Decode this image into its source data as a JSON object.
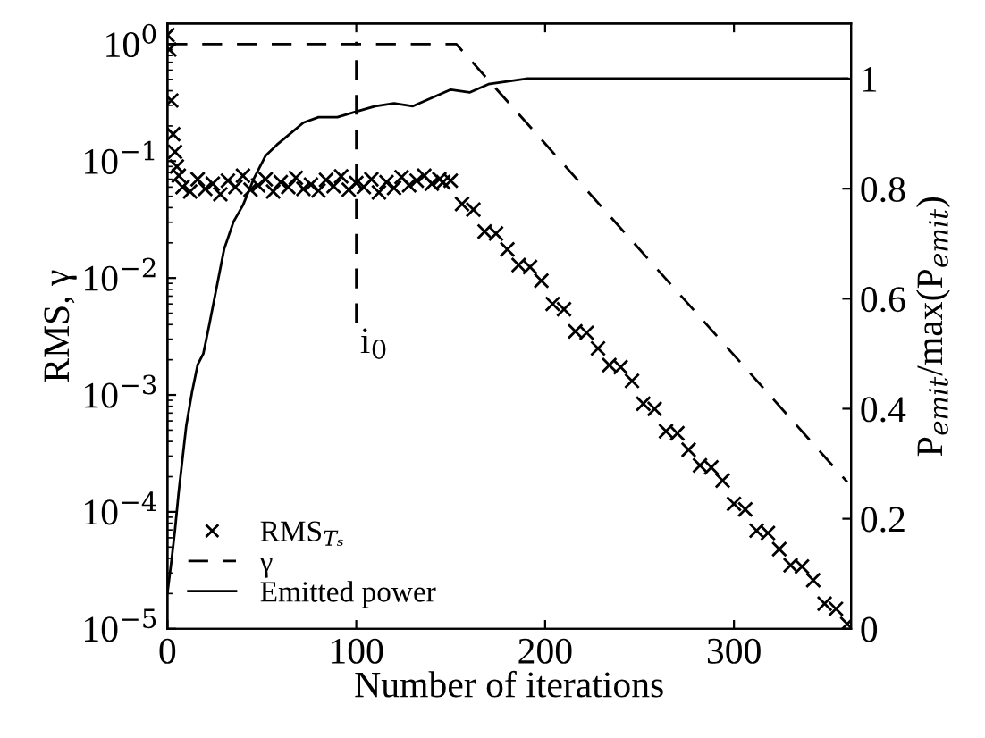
{
  "chart_data": {
    "type": "line",
    "xlabel": "Number of iterations",
    "ylabel": "RMS, γ",
    "y2label": "P$_{emit}$/max(P$_{emit}$)",
    "xlim": [
      0,
      362
    ],
    "xticks": [
      0,
      100,
      200,
      300
    ],
    "ylim": [
      1e-05,
      1.5
    ],
    "yticks": [
      {
        "value": 1e-05,
        "label": "10$^{−5}$"
      },
      {
        "value": 0.0001,
        "label": "10$^{−4}$"
      },
      {
        "value": 0.001,
        "label": "10$^{−3}$"
      },
      {
        "value": 0.01,
        "label": "10$^{−2}$"
      },
      {
        "value": 0.1,
        "label": "10$^{−1}$"
      },
      {
        "value": 1,
        "label": "10$^{0}$"
      }
    ],
    "y2lim": [
      0,
      1.1
    ],
    "y2ticks": [
      0,
      0.2,
      0.4,
      0.6,
      0.8,
      1
    ],
    "log": true,
    "grid": false,
    "legend": "bottom left",
    "ref_lines": [
      {
        "axis": "x",
        "value": 100,
        "label": "i$_{0}$",
        "line_style": "dashed",
        "color": "#000000"
      }
    ],
    "series": [
      {
        "name": "RMS$_{Tₛ}$",
        "type": "scatter",
        "marker": "cross",
        "color": "#000000",
        "x": [
          0,
          1,
          2,
          3,
          4,
          5,
          6,
          8,
          12,
          16,
          20,
          24,
          28,
          32,
          36,
          40,
          44,
          48,
          52,
          56,
          60,
          64,
          68,
          72,
          76,
          80,
          84,
          88,
          92,
          96,
          100,
          104,
          108,
          112,
          116,
          120,
          124,
          128,
          132,
          136,
          140,
          144,
          146,
          150,
          156,
          162,
          168,
          174,
          180,
          186,
          192,
          198,
          204,
          210,
          216,
          222,
          228,
          234,
          240,
          246,
          252,
          258,
          264,
          270,
          276,
          282,
          288,
          294,
          300,
          306,
          312,
          318,
          324,
          330,
          336,
          342,
          348,
          354,
          360
        ],
        "values": [
          1.2,
          0.9,
          0.33,
          0.17,
          0.12,
          0.09,
          0.075,
          0.06,
          0.055,
          0.07,
          0.058,
          0.064,
          0.052,
          0.068,
          0.06,
          0.075,
          0.057,
          0.062,
          0.07,
          0.055,
          0.066,
          0.06,
          0.072,
          0.058,
          0.063,
          0.056,
          0.069,
          0.061,
          0.074,
          0.057,
          0.065,
          0.06,
          0.07,
          0.054,
          0.066,
          0.059,
          0.073,
          0.062,
          0.068,
          0.075,
          0.064,
          0.07,
          0.066,
          0.068,
          0.043,
          0.0385,
          0.025,
          0.024,
          0.0176,
          0.0129,
          0.0124,
          0.0095,
          0.006,
          0.0054,
          0.0035,
          0.0034,
          0.0025,
          0.0018,
          0.00173,
          0.00132,
          0.00084,
          0.00076,
          0.00049,
          0.00047,
          0.00034,
          0.00025,
          0.00024,
          0.000185,
          0.000117,
          0.000105,
          6.9e-05,
          6.6e-05,
          4.8e-05,
          3.5e-05,
          3.4e-05,
          2.6e-05,
          1.64e-05,
          1.48e-05,
          1.1e-05
        ]
      },
      {
        "name": "γ",
        "line_style": "dashed",
        "color": "#000000",
        "x": [
          0,
          153,
          360
        ],
        "values": [
          1,
          1,
          0.00018
        ]
      },
      {
        "name": "Emitted power",
        "line_style": "solid",
        "axis": "y2",
        "color": "#000000",
        "x": [
          0,
          2,
          4,
          6,
          8,
          10,
          13,
          16,
          19,
          22,
          26,
          30,
          35,
          40,
          46,
          52,
          58,
          65,
          72,
          80,
          90,
          100,
          110,
          120,
          130,
          140,
          150,
          160,
          170,
          180,
          190,
          200,
          250,
          300,
          360
        ],
        "values": [
          0.065,
          0.12,
          0.18,
          0.25,
          0.31,
          0.37,
          0.43,
          0.48,
          0.5,
          0.55,
          0.62,
          0.69,
          0.74,
          0.77,
          0.82,
          0.86,
          0.88,
          0.9,
          0.92,
          0.93,
          0.93,
          0.94,
          0.95,
          0.955,
          0.95,
          0.965,
          0.98,
          0.975,
          0.99,
          0.995,
          1.0,
          1.0,
          1.0,
          1.0,
          1.0
        ]
      }
    ]
  }
}
